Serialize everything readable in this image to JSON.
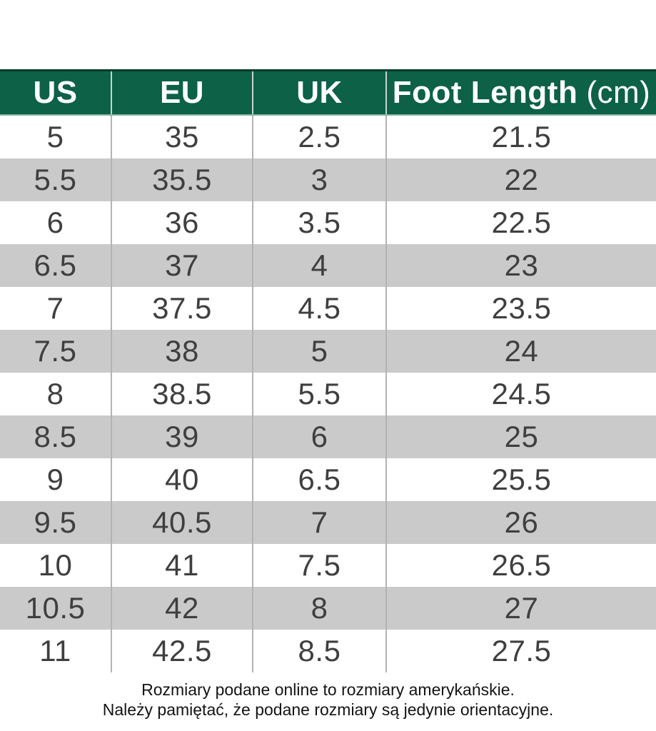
{
  "chart_data": {
    "type": "table",
    "columns": [
      "US",
      "EU",
      "UK",
      "Foot Length (cm)"
    ],
    "rows": [
      [
        "5",
        "35",
        "2.5",
        "21.5"
      ],
      [
        "5.5",
        "35.5",
        "3",
        "22"
      ],
      [
        "6",
        "36",
        "3.5",
        "22.5"
      ],
      [
        "6.5",
        "37",
        "4",
        "23"
      ],
      [
        "7",
        "37.5",
        "4.5",
        "23.5"
      ],
      [
        "7.5",
        "38",
        "5",
        "24"
      ],
      [
        "8",
        "38.5",
        "5.5",
        "24.5"
      ],
      [
        "8.5",
        "39",
        "6",
        "25"
      ],
      [
        "9",
        "40",
        "6.5",
        "25.5"
      ],
      [
        "9.5",
        "40.5",
        "7",
        "26"
      ],
      [
        "10",
        "41",
        "7.5",
        "26.5"
      ],
      [
        "10.5",
        "42",
        "8",
        "27"
      ],
      [
        "11",
        "42.5",
        "8.5",
        "27.5"
      ]
    ],
    "layout": {
      "striped": true,
      "header_position": "top"
    }
  },
  "header": {
    "us": "US",
    "eu": "EU",
    "uk": "UK",
    "foot_length_label": "Foot Length",
    "foot_length_unit": "(cm)"
  },
  "footer": {
    "line1": "Rozmiary podane online to rozmiary amerykańskie.",
    "line2": "Należy pamiętać, że podane rozmiary są jedynie orientacyjne."
  },
  "colors": {
    "header_bg": "#0c6147",
    "header_text": "#ffffff",
    "row_bg": "#ffffff",
    "row_alt_bg": "#cacaca",
    "cell_text": "#3f3f3f",
    "divider": "#b3b3b3"
  }
}
